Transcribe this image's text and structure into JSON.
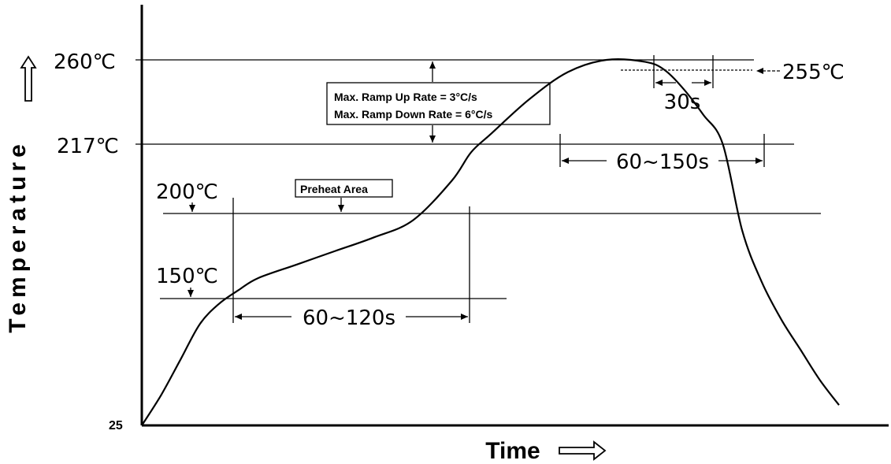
{
  "chart_data": {
    "type": "line",
    "title": "",
    "xlabel": "Time",
    "ylabel": "Temperature",
    "y_tick_labels": {
      "t25": "25",
      "t150": "150℃",
      "t200": "200℃",
      "t217": "217℃",
      "t260": "260℃"
    },
    "peak_label": "255℃",
    "annotations": {
      "ramp_up": "Max. Ramp Up Rate = 3°C/s",
      "ramp_down": "Max. Ramp Down Rate = 6°C/s",
      "preheat": "Preheat Area",
      "preheat_time": "60~120s",
      "liquidus_time": "60~150s",
      "peak_time": "30s"
    },
    "reference_temperatures": [
      25,
      150,
      200,
      217,
      255,
      260
    ],
    "series": [
      {
        "values_note": "",
        "x": [
          0,
          10,
          20,
          30,
          40,
          50,
          60,
          80,
          100,
          120,
          140,
          160,
          170,
          180,
          200,
          220,
          240,
          260,
          270,
          280,
          290,
          300,
          310,
          320,
          330,
          340,
          350,
          360
        ],
        "y": [
          25,
          55,
          90,
          125,
          145,
          155,
          162,
          170,
          178,
          186,
          196,
          208,
          215,
          222,
          240,
          254,
          260,
          259,
          255,
          245,
          232,
          217,
          190,
          160,
          130,
          100,
          70,
          45
        ]
      }
    ],
    "x_phases": {
      "preheat_start": 40,
      "preheat_end": 160,
      "liquidus_start": 212,
      "liquidus_end": 305,
      "peak_start": 248,
      "peak_end": 272
    },
    "grid": false,
    "legend": "none"
  }
}
